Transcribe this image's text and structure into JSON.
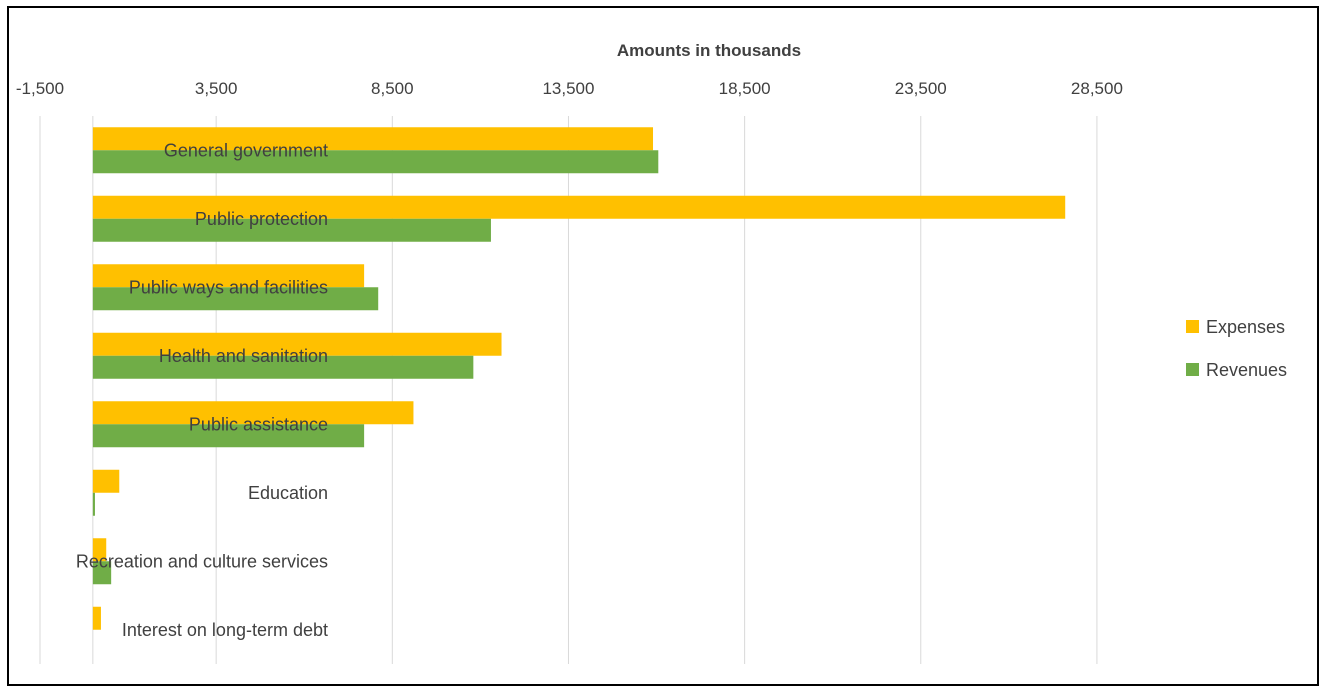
{
  "chart_data": {
    "type": "bar",
    "orientation": "horizontal",
    "title": "",
    "xlabel": "Amounts in thousands",
    "ylabel": "",
    "xlim": [
      -1500,
      31000
    ],
    "x_ticks": [
      -1500,
      3500,
      8500,
      13500,
      18500,
      23500,
      28500
    ],
    "x_tick_labels": [
      "-1,500",
      "3,500",
      "8,500",
      "13,500",
      "18,500",
      "23,500",
      "28,500"
    ],
    "x_axis_position": "top",
    "grid": true,
    "legend_position": "right",
    "categories": [
      "General government",
      "Public protection",
      "Public ways and facilities",
      "Health and sanitation",
      "Public assistance",
      "Education",
      "Recreation and culture services",
      "Interest on long-term debt"
    ],
    "series": [
      {
        "name": "Expenses",
        "color": "#FFC000",
        "values": [
          15900,
          27600,
          7700,
          11600,
          9100,
          750,
          380,
          230
        ]
      },
      {
        "name": "Revenues",
        "color": "#70AD47",
        "values": [
          16050,
          11300,
          8100,
          10800,
          7700,
          60,
          520,
          0
        ]
      }
    ]
  }
}
